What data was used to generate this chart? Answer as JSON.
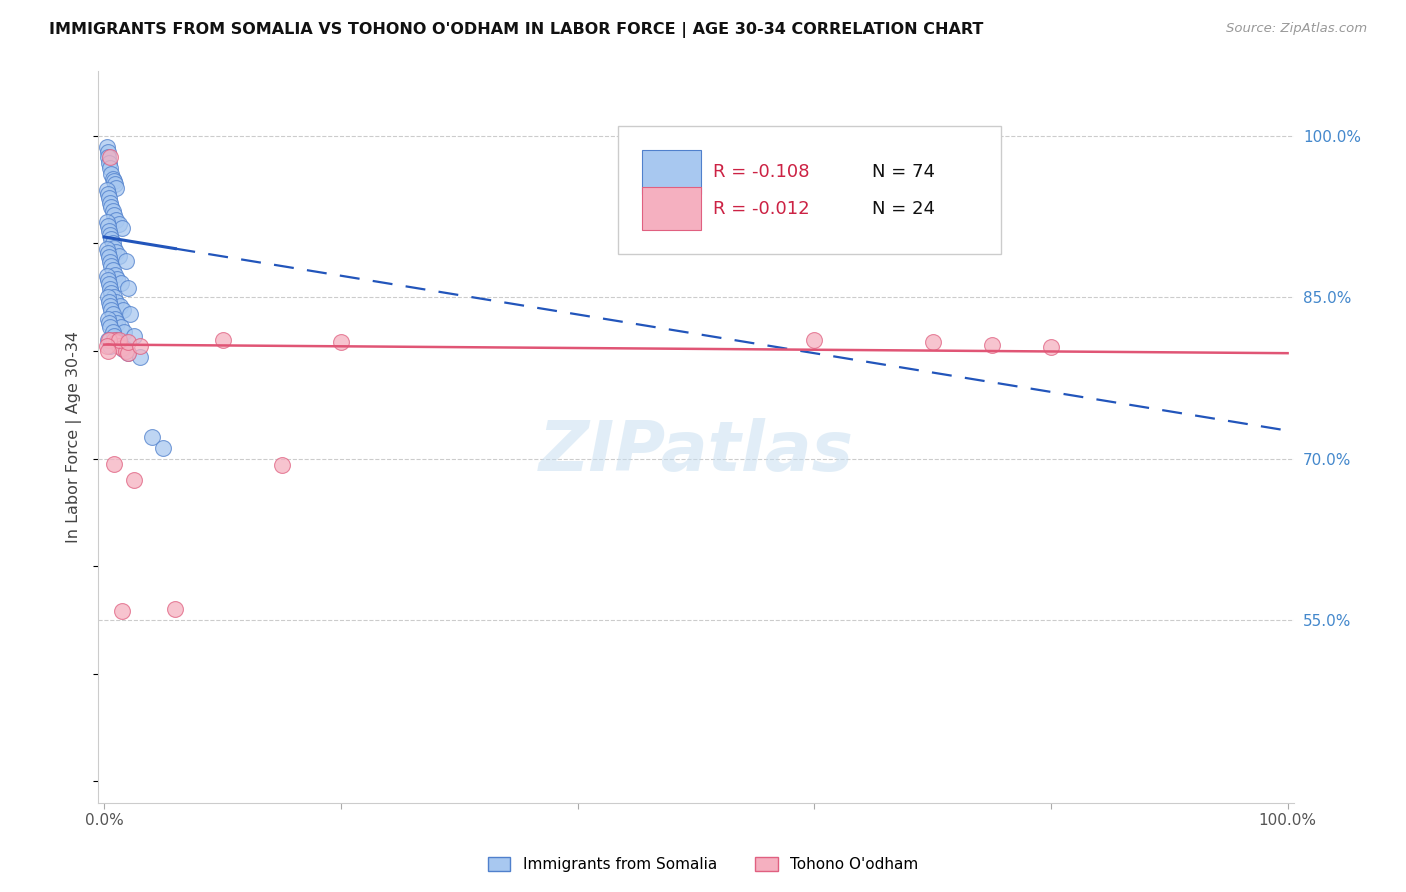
{
  "title": "IMMIGRANTS FROM SOMALIA VS TOHONO O'ODHAM IN LABOR FORCE | AGE 30-34 CORRELATION CHART",
  "source": "Source: ZipAtlas.com",
  "ylabel": "In Labor Force | Age 30-34",
  "xlim": [
    -0.005,
    1.005
  ],
  "ylim": [
    0.38,
    1.06
  ],
  "right_yticks": [
    1.0,
    0.85,
    0.7,
    0.55
  ],
  "right_yticklabels": [
    "100.0%",
    "85.0%",
    "70.0%",
    "55.0%"
  ],
  "xtick_positions": [
    0.0,
    0.2,
    0.4,
    0.6,
    0.8,
    1.0
  ],
  "xtick_labels": [
    "0.0%",
    "",
    "",
    "",
    "",
    "100.0%"
  ],
  "watermark": "ZIPatlas",
  "legend_r1": "R = -0.108",
  "legend_n1": "N = 74",
  "legend_r2": "R = -0.012",
  "legend_n2": "N = 24",
  "somalia_color": "#a8c8f0",
  "tohono_color": "#f5b0c0",
  "somalia_edge": "#5080cc",
  "tohono_edge": "#e06080",
  "trend1_color": "#2255bb",
  "trend2_color": "#e05575",
  "grid_color": "#cccccc",
  "somalia_trend_start_x": 0.0,
  "somalia_trend_start_y": 0.906,
  "somalia_trend_end_x": 1.0,
  "somalia_trend_end_y": 0.726,
  "somalia_trend_solid_end_x": 0.06,
  "tohono_trend_start_x": 0.0,
  "tohono_trend_start_y": 0.806,
  "tohono_trend_end_x": 1.0,
  "tohono_trend_end_y": 0.798,
  "somalia_x": [
    0.002,
    0.003,
    0.003,
    0.004,
    0.005,
    0.006,
    0.007,
    0.008,
    0.009,
    0.01,
    0.002,
    0.003,
    0.004,
    0.005,
    0.006,
    0.007,
    0.008,
    0.01,
    0.012,
    0.015,
    0.002,
    0.003,
    0.004,
    0.005,
    0.006,
    0.007,
    0.008,
    0.01,
    0.012,
    0.018,
    0.002,
    0.003,
    0.004,
    0.005,
    0.006,
    0.007,
    0.009,
    0.011,
    0.014,
    0.02,
    0.002,
    0.003,
    0.004,
    0.005,
    0.006,
    0.008,
    0.01,
    0.013,
    0.016,
    0.022,
    0.003,
    0.004,
    0.005,
    0.006,
    0.007,
    0.009,
    0.011,
    0.014,
    0.017,
    0.025,
    0.003,
    0.004,
    0.005,
    0.007,
    0.008,
    0.01,
    0.013,
    0.016,
    0.02,
    0.03,
    0.003,
    0.005,
    0.04,
    0.05
  ],
  "somalia_y": [
    0.99,
    0.985,
    0.98,
    0.975,
    0.97,
    0.965,
    0.96,
    0.958,
    0.955,
    0.952,
    0.95,
    0.946,
    0.942,
    0.938,
    0.934,
    0.93,
    0.926,
    0.922,
    0.918,
    0.914,
    0.92,
    0.916,
    0.912,
    0.908,
    0.904,
    0.9,
    0.896,
    0.892,
    0.888,
    0.884,
    0.895,
    0.891,
    0.887,
    0.883,
    0.879,
    0.875,
    0.871,
    0.867,
    0.863,
    0.859,
    0.87,
    0.866,
    0.862,
    0.858,
    0.854,
    0.85,
    0.846,
    0.842,
    0.838,
    0.834,
    0.85,
    0.846,
    0.842,
    0.838,
    0.834,
    0.83,
    0.826,
    0.822,
    0.818,
    0.814,
    0.83,
    0.826,
    0.822,
    0.818,
    0.814,
    0.81,
    0.806,
    0.802,
    0.798,
    0.794,
    0.81,
    0.805,
    0.72,
    0.71
  ],
  "tohono_x": [
    0.005,
    0.008,
    0.01,
    0.012,
    0.015,
    0.018,
    0.02,
    0.025,
    0.004,
    0.012,
    0.02,
    0.03,
    0.002,
    0.003,
    0.008,
    0.015,
    0.6,
    0.7,
    0.75,
    0.8,
    0.1,
    0.15,
    0.06,
    0.2
  ],
  "tohono_y": [
    0.98,
    0.81,
    0.808,
    0.805,
    0.803,
    0.8,
    0.798,
    0.68,
    0.81,
    0.81,
    0.808,
    0.805,
    0.805,
    0.8,
    0.695,
    0.558,
    0.81,
    0.808,
    0.806,
    0.804,
    0.81,
    0.694,
    0.56,
    0.808
  ]
}
